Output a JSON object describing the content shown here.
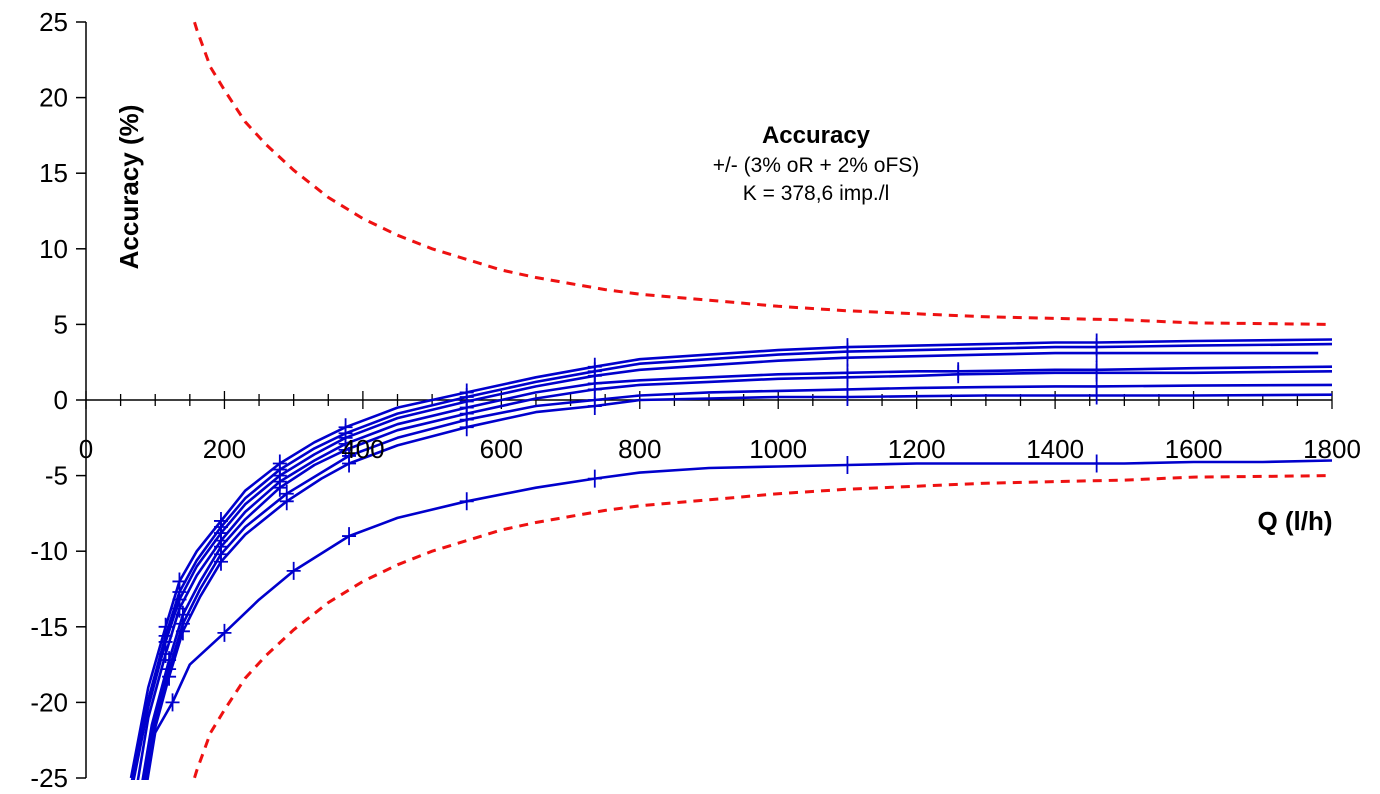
{
  "chart_data": {
    "type": "line",
    "title": "Accuracy",
    "annotation_lines": [
      "+/- (3% oR + 2% oFS)",
      "K = 378,6 imp./l"
    ],
    "xlabel": "Q (l/h)",
    "ylabel": "Accuracy (%)",
    "xlim": [
      0,
      1800
    ],
    "ylim": [
      -25,
      25
    ],
    "x_ticks": [
      0,
      200,
      400,
      600,
      800,
      1000,
      1200,
      1400,
      1600,
      1800
    ],
    "y_ticks": [
      25,
      20,
      15,
      10,
      5,
      0,
      -5,
      -10,
      -15,
      -20,
      -25
    ],
    "grid": false,
    "legend": "none",
    "colors": {
      "measured": "#0000cc",
      "limit": "#ee1111",
      "axis": "#000000"
    },
    "limit_series": [
      {
        "style": "dashed",
        "x": [
          150,
          160,
          180,
          200,
          230,
          260,
          300,
          350,
          400,
          450,
          500,
          550,
          600,
          650,
          700,
          750,
          800,
          900,
          1000,
          1100,
          1200,
          1300,
          1400,
          1500,
          1600,
          1700,
          1800
        ],
        "values": [
          26,
          24.5,
          22,
          20.5,
          18.4,
          16.9,
          15.2,
          13.4,
          12,
          10.9,
          10,
          9.3,
          8.6,
          8.1,
          7.7,
          7.3,
          7,
          6.6,
          6.2,
          5.9,
          5.7,
          5.5,
          5.4,
          5.3,
          5.1,
          5.05,
          5
        ]
      },
      {
        "style": "dashed",
        "x": [
          150,
          160,
          180,
          200,
          230,
          260,
          300,
          350,
          400,
          450,
          500,
          550,
          600,
          650,
          700,
          750,
          800,
          900,
          1000,
          1100,
          1200,
          1300,
          1400,
          1500,
          1600,
          1700,
          1800
        ],
        "values": [
          -26,
          -24.5,
          -22,
          -20.5,
          -18.4,
          -16.9,
          -15.2,
          -13.4,
          -12,
          -10.9,
          -10,
          -9.3,
          -8.6,
          -8.1,
          -7.7,
          -7.3,
          -7,
          -6.6,
          -6.2,
          -5.9,
          -5.7,
          -5.5,
          -5.4,
          -5.3,
          -5.1,
          -5.05,
          -5
        ]
      }
    ],
    "series": [
      {
        "x": [
          65,
          90,
          115,
          135,
          160,
          195,
          230,
          280,
          330,
          375,
          450,
          550,
          650,
          735,
          800,
          900,
          1000,
          1100,
          1200,
          1300,
          1400,
          1460,
          1600,
          1800
        ],
        "values": [
          -25,
          -19,
          -15,
          -12,
          -10,
          -8,
          -6,
          -4.2,
          -2.8,
          -1.8,
          -0.5,
          0.5,
          1.5,
          2.2,
          2.7,
          3.0,
          3.3,
          3.5,
          3.6,
          3.7,
          3.8,
          3.8,
          3.9,
          4.0
        ]
      },
      {
        "x": [
          65,
          90,
          115,
          135,
          160,
          195,
          230,
          280,
          330,
          375,
          450,
          550,
          650,
          735,
          800,
          900,
          1000,
          1100,
          1200,
          1300,
          1400,
          1460,
          1600,
          1800
        ],
        "values": [
          -25.5,
          -19.8,
          -15.6,
          -12.7,
          -10.6,
          -8.4,
          -6.5,
          -4.6,
          -3.2,
          -2.2,
          -0.9,
          0.2,
          1.2,
          1.9,
          2.4,
          2.7,
          3.0,
          3.2,
          3.3,
          3.4,
          3.5,
          3.5,
          3.6,
          3.7
        ]
      },
      {
        "x": [
          65,
          90,
          115,
          135,
          160,
          195,
          230,
          280,
          330,
          375,
          450,
          550,
          650,
          735,
          800,
          900,
          1000,
          1100,
          1200,
          1300,
          1400,
          1460,
          1600,
          1780
        ],
        "values": [
          -26,
          -20.3,
          -16,
          -13.2,
          -11,
          -8.8,
          -6.9,
          -5,
          -3.6,
          -2.5,
          -1.2,
          -0.1,
          0.9,
          1.6,
          2.0,
          2.3,
          2.6,
          2.8,
          2.9,
          3.0,
          3.1,
          3.1,
          3.1,
          3.1
        ]
      },
      {
        "x": [
          70,
          90,
          115,
          135,
          160,
          195,
          230,
          280,
          330,
          375,
          450,
          550,
          650,
          735,
          800,
          900,
          1000,
          1100,
          1200,
          1260,
          1400,
          1460,
          1600,
          1800
        ],
        "values": [
          -26.5,
          -21,
          -16.8,
          -13.8,
          -11.6,
          -9.3,
          -7.4,
          -5.4,
          -4,
          -2.9,
          -1.6,
          -0.5,
          0.5,
          1.1,
          1.3,
          1.5,
          1.7,
          1.8,
          1.9,
          1.9,
          2.0,
          2.0,
          2.1,
          2.2
        ]
      },
      {
        "x": [
          75,
          95,
          120,
          140,
          165,
          195,
          230,
          280,
          330,
          375,
          450,
          550,
          650,
          735,
          800,
          900,
          1000,
          1100,
          1200,
          1260,
          1400,
          1460,
          1600,
          1800
        ],
        "values": [
          -27,
          -21.5,
          -17.2,
          -14.2,
          -12,
          -9.7,
          -7.9,
          -5.8,
          -4.3,
          -3.3,
          -2,
          -0.9,
          0.1,
          0.7,
          1.0,
          1.2,
          1.4,
          1.5,
          1.6,
          1.7,
          1.8,
          1.8,
          1.8,
          1.9
        ]
      },
      {
        "x": [
          75,
          95,
          120,
          140,
          165,
          195,
          230,
          290,
          340,
          380,
          450,
          550,
          650,
          735,
          800,
          900,
          1000,
          1100,
          1200,
          1300,
          1400,
          1460,
          1600,
          1800
        ],
        "values": [
          -27.5,
          -22,
          -17.8,
          -14.8,
          -12.5,
          -10.2,
          -8.4,
          -6.2,
          -4.8,
          -3.7,
          -2.5,
          -1.3,
          -0.4,
          0.0,
          0.3,
          0.5,
          0.6,
          0.7,
          0.8,
          0.85,
          0.9,
          0.9,
          0.95,
          1.0
        ]
      },
      {
        "x": [
          75,
          95,
          120,
          140,
          165,
          195,
          230,
          290,
          340,
          380,
          450,
          550,
          650,
          735,
          800,
          900,
          1000,
          1100,
          1200,
          1300,
          1400,
          1460,
          1600,
          1800
        ],
        "values": [
          -28,
          -22.5,
          -18.3,
          -15.3,
          -13,
          -10.7,
          -8.9,
          -6.7,
          -5.2,
          -4.2,
          -3,
          -1.8,
          -0.8,
          -0.4,
          0.0,
          0.1,
          0.2,
          0.2,
          0.25,
          0.3,
          0.3,
          0.3,
          0.3,
          0.35
        ]
      },
      {
        "x": [
          82,
          100,
          125,
          150,
          200,
          250,
          300,
          380,
          450,
          550,
          650,
          735,
          800,
          900,
          1000,
          1100,
          1200,
          1300,
          1400,
          1460,
          1500,
          1600,
          1700,
          1800
        ],
        "values": [
          -27,
          -22,
          -20,
          -17.5,
          -15.4,
          -13.2,
          -11.3,
          -9,
          -7.8,
          -6.7,
          -5.8,
          -5.2,
          -4.8,
          -4.5,
          -4.4,
          -4.3,
          -4.2,
          -4.2,
          -4.2,
          -4.2,
          -4.2,
          -4.1,
          -4.1,
          -4.0
        ]
      }
    ]
  }
}
